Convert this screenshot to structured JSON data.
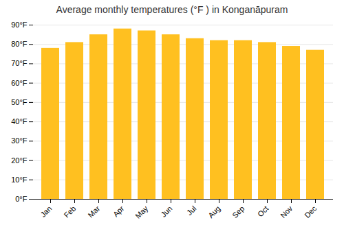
{
  "chart_data": {
    "type": "bar",
    "title": "Average monthly temperatures (°F ) in Konganāpuram",
    "categories": [
      "Jan",
      "Feb",
      "Mar",
      "Apr",
      "May",
      "Jun",
      "Jul",
      "Aug",
      "Sep",
      "Oct",
      "Nov",
      "Dec"
    ],
    "values": [
      78,
      81,
      85,
      88,
      87,
      85,
      83,
      82,
      82,
      81,
      79,
      77
    ],
    "color": "#FFC020",
    "ylim": [
      0,
      90
    ],
    "yticks": [
      {
        "value": 0,
        "label": "0°F"
      },
      {
        "value": 10,
        "label": "10°F"
      },
      {
        "value": 20,
        "label": "20°F"
      },
      {
        "value": 30,
        "label": "30°F"
      },
      {
        "value": 40,
        "label": "40°F"
      },
      {
        "value": 50,
        "label": "50°F"
      },
      {
        "value": 60,
        "label": "60°F"
      },
      {
        "value": 70,
        "label": "70°F"
      },
      {
        "value": 80,
        "label": "80°F"
      },
      {
        "value": 90,
        "label": "90°F"
      }
    ],
    "grid": true
  }
}
